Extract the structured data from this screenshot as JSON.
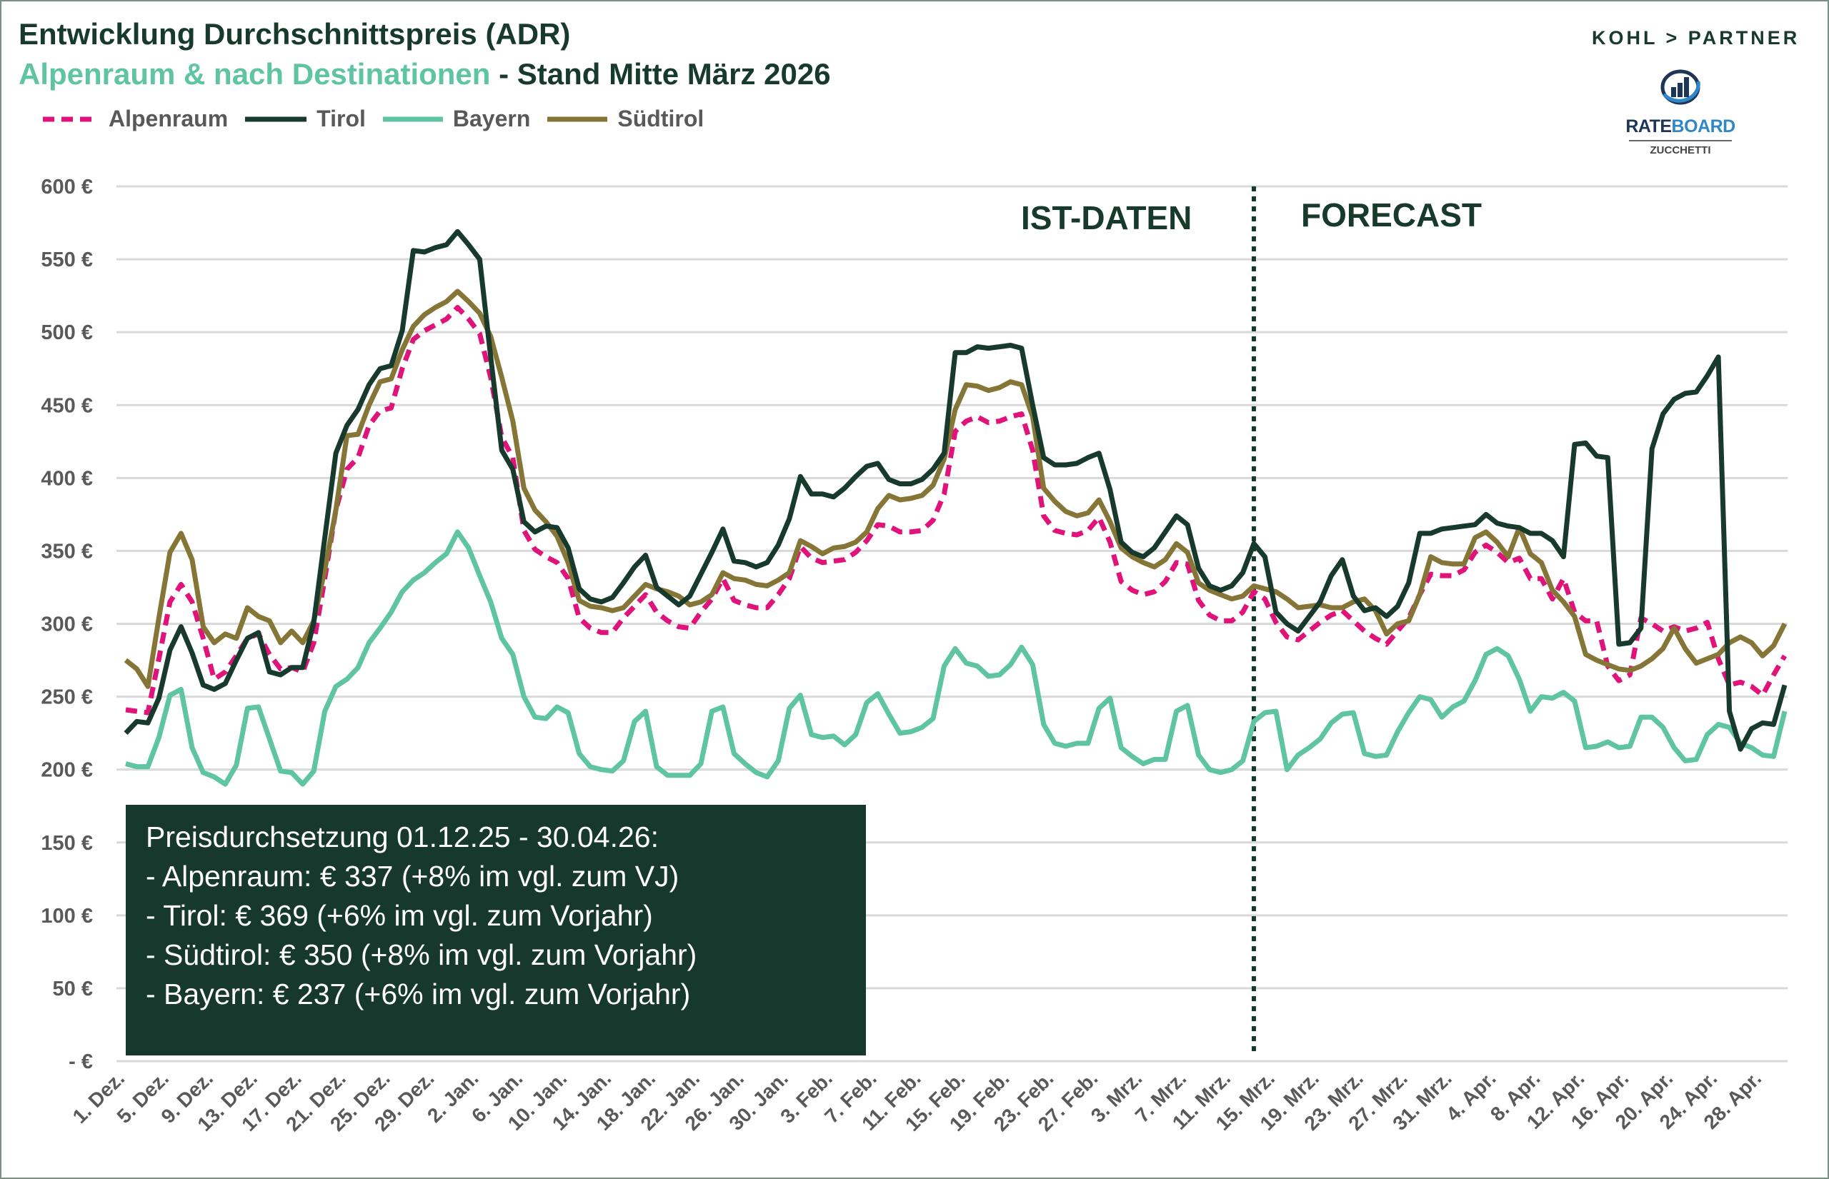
{
  "header": {
    "title": "Entwicklung Durchschnittspreis (ADR)",
    "subtitle_highlight": "Alpenraum & nach Destinationen",
    "subtitle_rest": " - Stand Mitte März 2026"
  },
  "logos": {
    "kohl_partner": "KOHL > PARTNER",
    "rateboard_part1": "RATE",
    "rateboard_part2": "BOARD",
    "zucchetti": "ZUCCHETTI"
  },
  "info_box": {
    "lines": [
      "Preisdurchsetzung 01.12.25 - 30.04.26:",
      "- Alpenraum: € 337 (+8% im vgl. zum VJ)",
      "- Tirol:  € 369 (+6% im vgl. zum Vorjahr)",
      "- Südtirol:  € 350 (+8% im vgl. zum Vorjahr)",
      "- Bayern: € 237  (+6% im vgl. zum Vorjahr)"
    ]
  },
  "chart_data": {
    "type": "line",
    "title": "Entwicklung Durchschnittspreis (ADR)",
    "xlabel": "",
    "ylabel": "",
    "x_note": "daily values from 1. Dez to 30. Apr (index 0 = 1. Dez)",
    "ylim": [
      0,
      600
    ],
    "y_ticks": [
      0,
      50,
      100,
      150,
      200,
      250,
      300,
      350,
      400,
      450,
      500,
      550,
      600
    ],
    "y_tick_labels": [
      "- €",
      "50 €",
      "100 €",
      "150 €",
      "200 €",
      "250 €",
      "300 €",
      "350 €",
      "400 €",
      "450 €",
      "500 €",
      "550 €",
      "600 €"
    ],
    "x_tick_every": 4,
    "x_tick_labels": [
      "1. Dez.",
      "5. Dez.",
      "9. Dez.",
      "13. Dez.",
      "17. Dez.",
      "21. Dez.",
      "25. Dez.",
      "29. Dez.",
      "2. Jan.",
      "6. Jan.",
      "10. Jan.",
      "14. Jan.",
      "18. Jan.",
      "22. Jan.",
      "26. Jan.",
      "30. Jan.",
      "3. Feb.",
      "7. Feb.",
      "11. Feb.",
      "15. Feb.",
      "19. Feb.",
      "23. Feb.",
      "27. Feb.",
      "3. Mrz.",
      "7. Mrz.",
      "11. Mrz.",
      "15. Mrz.",
      "19. Mrz.",
      "23. Mrz.",
      "27. Mrz.",
      "31. Mrz.",
      "4. Apr.",
      "8. Apr.",
      "12. Apr.",
      "16. Apr.",
      "20. Apr.",
      "24. Apr.",
      "28. Apr."
    ],
    "grid": true,
    "legend_position": "top-left",
    "annotations": {
      "actual_label": "IST-DATEN",
      "forecast_label": "FORECAST",
      "split_index": 102
    },
    "series": [
      {
        "name": "Alpenraum",
        "color": "#e0137a",
        "dashed": true,
        "values": [
          241,
          240,
          239,
          276,
          315,
          327,
          315,
          290,
          262,
          267,
          278,
          290,
          293,
          279,
          269,
          270,
          267,
          287,
          331,
          378,
          406,
          414,
          436,
          446,
          448,
          475,
          495,
          501,
          505,
          509,
          517,
          509,
          499,
          469,
          428,
          414,
          364,
          351,
          346,
          342,
          331,
          304,
          297,
          294,
          294,
          304,
          312,
          320,
          308,
          302,
          298,
          297,
          308,
          317,
          331,
          316,
          313,
          311,
          311,
          320,
          331,
          353,
          345,
          342,
          343,
          344,
          349,
          357,
          368,
          367,
          363,
          363,
          364,
          371,
          389,
          432,
          439,
          442,
          438,
          439,
          442,
          444,
          419,
          374,
          364,
          362,
          361,
          364,
          373,
          356,
          329,
          323,
          320,
          322,
          329,
          342,
          341,
          316,
          306,
          302,
          302,
          308,
          322,
          317,
          301,
          291,
          289,
          295,
          301,
          306,
          309,
          302,
          295,
          290,
          286,
          295,
          304,
          320,
          334,
          333,
          333,
          337,
          349,
          354,
          349,
          342,
          345,
          331,
          331,
          317,
          331,
          308,
          302,
          302,
          271,
          261,
          265,
          304,
          300,
          295,
          298,
          295,
          297,
          301,
          276,
          258,
          260,
          257,
          251,
          265,
          278
        ]
      },
      {
        "name": "Tirol",
        "color": "#173a2c",
        "dashed": false,
        "values": [
          225,
          233,
          232,
          249,
          282,
          298,
          280,
          258,
          255,
          259,
          275,
          290,
          294,
          267,
          265,
          270,
          270,
          301,
          359,
          417,
          436,
          447,
          464,
          475,
          477,
          501,
          556,
          555,
          558,
          560,
          569,
          560,
          550,
          483,
          419,
          406,
          370,
          363,
          367,
          366,
          352,
          324,
          317,
          315,
          318,
          328,
          339,
          347,
          325,
          319,
          313,
          319,
          334,
          349,
          365,
          343,
          342,
          339,
          342,
          354,
          372,
          401,
          389,
          389,
          387,
          393,
          401,
          408,
          410,
          399,
          396,
          396,
          399,
          406,
          417,
          486,
          486,
          490,
          489,
          490,
          491,
          489,
          450,
          414,
          409,
          409,
          410,
          414,
          417,
          392,
          356,
          349,
          346,
          352,
          363,
          374,
          368,
          338,
          326,
          323,
          326,
          335,
          355,
          346,
          308,
          300,
          295,
          305,
          315,
          333,
          344,
          319,
          309,
          311,
          305,
          312,
          328,
          362,
          362,
          365,
          366,
          367,
          368,
          375,
          369,
          367,
          366,
          362,
          362,
          357,
          346,
          423,
          424,
          415,
          414,
          286,
          287,
          297,
          420,
          444,
          454,
          458,
          459,
          470,
          483,
          240,
          214,
          228,
          232,
          231,
          258
        ]
      },
      {
        "name": "Bayern",
        "color": "#5ec4a1",
        "dashed": false,
        "values": [
          204,
          202,
          202,
          222,
          251,
          255,
          215,
          198,
          195,
          190,
          203,
          242,
          243,
          221,
          199,
          198,
          190,
          199,
          240,
          257,
          262,
          270,
          287,
          297,
          308,
          322,
          330,
          335,
          342,
          348,
          363,
          352,
          333,
          315,
          290,
          279,
          250,
          236,
          235,
          243,
          239,
          211,
          202,
          200,
          199,
          206,
          233,
          240,
          202,
          196,
          196,
          196,
          204,
          240,
          243,
          211,
          204,
          198,
          195,
          206,
          242,
          251,
          224,
          222,
          223,
          217,
          224,
          246,
          252,
          238,
          225,
          226,
          229,
          235,
          271,
          283,
          273,
          271,
          264,
          265,
          272,
          284,
          272,
          231,
          218,
          216,
          218,
          218,
          242,
          249,
          215,
          209,
          204,
          207,
          207,
          240,
          244,
          210,
          200,
          198,
          200,
          206,
          233,
          239,
          240,
          200,
          210,
          215,
          221,
          232,
          238,
          239,
          211,
          209,
          210,
          226,
          239,
          250,
          248,
          236,
          243,
          247,
          261,
          279,
          283,
          278,
          262,
          240,
          250,
          249,
          253,
          247,
          215,
          216,
          219,
          215,
          216,
          236,
          236,
          229,
          215,
          206,
          207,
          224,
          231,
          229,
          218,
          215,
          210,
          209,
          240
        ]
      },
      {
        "name": "Südtirol",
        "color": "#857536",
        "dashed": false,
        "values": [
          275,
          269,
          257,
          304,
          349,
          362,
          344,
          298,
          287,
          293,
          290,
          311,
          305,
          302,
          287,
          295,
          287,
          302,
          337,
          378,
          429,
          430,
          450,
          466,
          468,
          488,
          504,
          512,
          517,
          521,
          528,
          521,
          513,
          497,
          469,
          439,
          393,
          378,
          370,
          360,
          342,
          316,
          312,
          311,
          309,
          311,
          319,
          327,
          324,
          322,
          319,
          313,
          315,
          320,
          335,
          331,
          330,
          327,
          326,
          330,
          335,
          357,
          353,
          348,
          352,
          353,
          356,
          363,
          379,
          388,
          385,
          386,
          388,
          395,
          413,
          447,
          464,
          463,
          460,
          462,
          466,
          464,
          442,
          393,
          384,
          377,
          374,
          376,
          385,
          370,
          352,
          346,
          342,
          339,
          344,
          355,
          349,
          328,
          323,
          320,
          317,
          319,
          326,
          324,
          322,
          317,
          311,
          312,
          313,
          311,
          311,
          315,
          317,
          309,
          293,
          300,
          302,
          320,
          346,
          342,
          341,
          341,
          359,
          363,
          356,
          346,
          366,
          348,
          342,
          323,
          315,
          305,
          279,
          275,
          272,
          269,
          268,
          271,
          276,
          283,
          297,
          283,
          273,
          276,
          279,
          287,
          291,
          287,
          278,
          285,
          300
        ]
      }
    ]
  }
}
